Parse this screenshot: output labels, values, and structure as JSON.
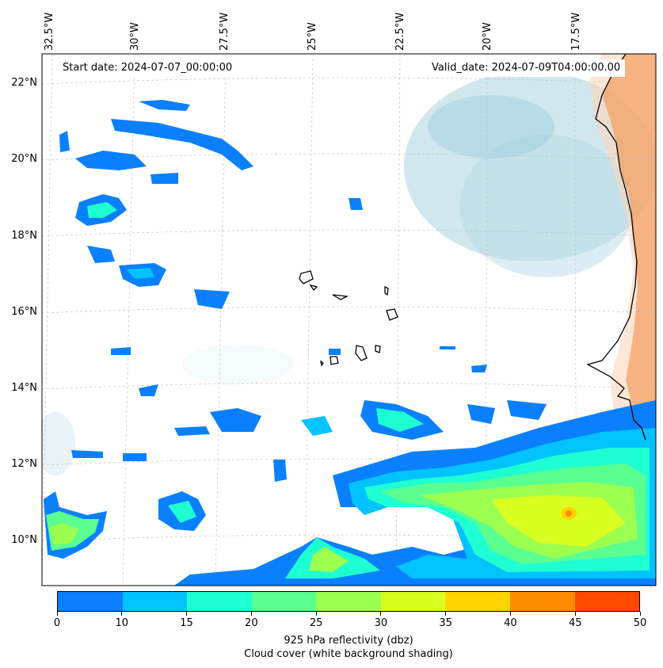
{
  "header": {
    "start_date": "Start date: 2024-07-07_00:00:00",
    "valid_date": "Valid_date: 2024-07-09T04:00:00.00"
  },
  "map": {
    "longitude_labels": [
      "32.5°W",
      "30°W",
      "27.5°W",
      "25°W",
      "22.5°W",
      "20°W",
      "17.5°W"
    ],
    "latitude_labels": [
      "22°N",
      "20°N",
      "18°N",
      "16°N",
      "14°N",
      "12°N",
      "10°N"
    ],
    "gridlines": true,
    "coastline_color": "#000000",
    "land_shading_color": "#f4a46a",
    "cloud_shading_color": "#a9d3e0"
  },
  "colorbar": {
    "ticks": [
      "0",
      "10",
      "15",
      "20",
      "25",
      "30",
      "35",
      "40",
      "45",
      "50"
    ],
    "colors": [
      "#0a80ff",
      "#00c3ff",
      "#1effd2",
      "#5aff90",
      "#9cff50",
      "#d8ff20",
      "#ffd400",
      "#ff8c00",
      "#ff4a00"
    ],
    "label": "925 hPa reflectivity (dbz)",
    "sublabel": "Cloud cover (white background shading)"
  }
}
